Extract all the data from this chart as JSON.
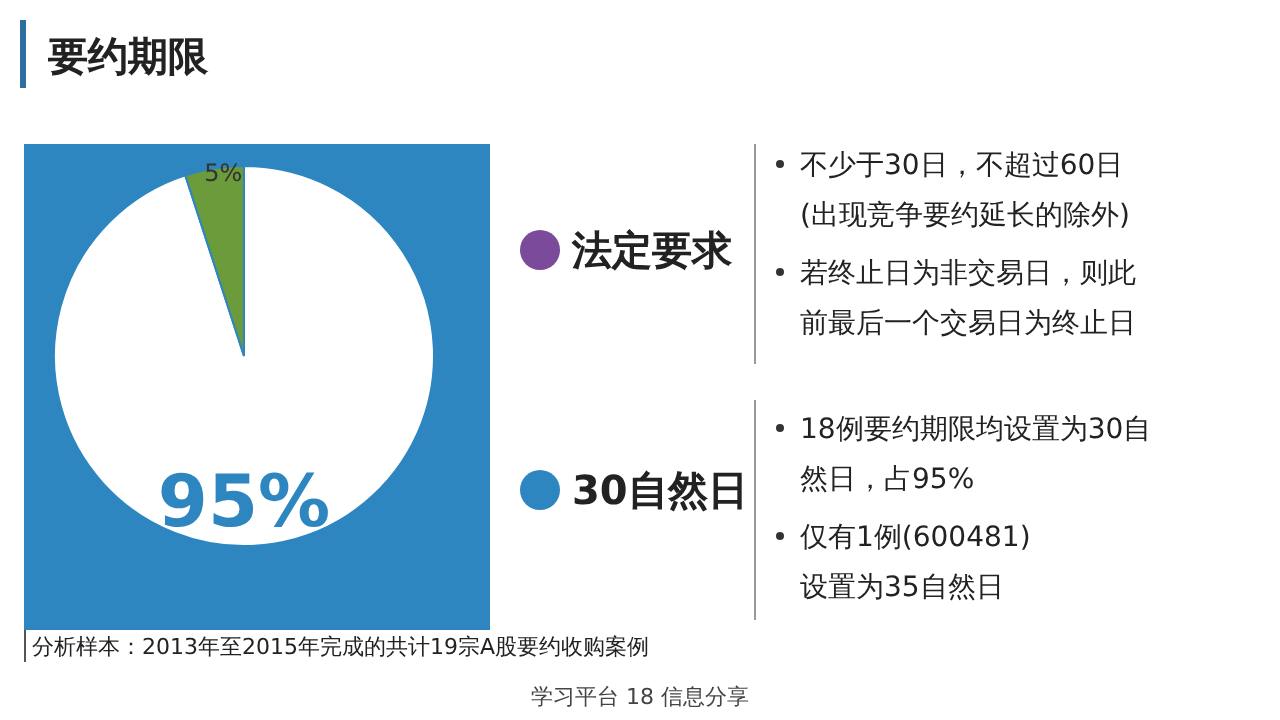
{
  "chart_data": {
    "type": "pie",
    "title": "要约期限",
    "categories": [
      null,
      null
    ],
    "values": [
      95,
      5
    ],
    "colors": [
      "#ffffff",
      "#6b9b3a"
    ],
    "value_labels": [
      "95%",
      "5%"
    ],
    "annotations": [
      "法定要求",
      "不少于30日，不超过60日",
      "(出现竞争要约延长的除外)",
      "若终止日为非交易日，则此",
      "前最后一个交易日为终止日",
      "30自然日",
      "18例要约期限均设置为30自",
      "然日，占95%",
      "仅有1例(600481)",
      "设置为35自然日",
      "分析样本：2013年至2015年完成的共计19宗A股要约收购案例",
      "学习平台 18 信息分享"
    ]
  }
}
